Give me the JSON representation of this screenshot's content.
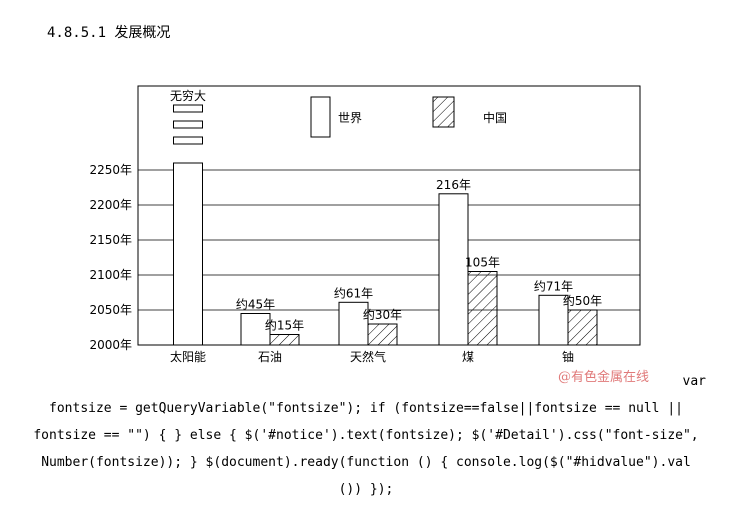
{
  "page": {
    "heading": "4.8.5.1 发展概况",
    "watermark": "@有色金属在线",
    "code_lines": [
      "var",
      "fontsize = getQueryVariable(\"fontsize\"); if (fontsize==false||fontsize == null ||",
      "fontsize == \"\") { } else { $('#notice').text(fontsize); $('#Detail').css(\"font-size\",",
      "Number(fontsize)); } $(document).ready(function () { console.log($(\"#hidvalue\").val",
      "()) });"
    ]
  },
  "chart_data": {
    "type": "bar",
    "categories": [
      "太阳能",
      "石油",
      "天然气",
      "煤",
      "铀"
    ],
    "series": [
      {
        "name": "世界",
        "values": [
          2260,
          2045,
          2061,
          2216,
          2071
        ],
        "labels": [
          "无穷大",
          "约45年",
          "约61年",
          "216年",
          "约71年"
        ],
        "pattern": "hollow"
      },
      {
        "name": "中国",
        "values": [
          null,
          2015,
          2030,
          2105,
          2050
        ],
        "labels": [
          "",
          "约15年",
          "约30年",
          "105年",
          "约50年"
        ],
        "pattern": "hatched"
      }
    ],
    "yticks": [
      "2000年",
      "2050年",
      "2100年",
      "2150年",
      "2200年",
      "2250年"
    ],
    "ytick_values": [
      2000,
      2050,
      2100,
      2150,
      2200,
      2250
    ],
    "ylim": [
      2000,
      2350
    ],
    "grid": true,
    "legend_position": "top-center",
    "infinite_marker": true,
    "colors": {
      "stroke": "#000000",
      "fill": "#ffffff"
    }
  }
}
